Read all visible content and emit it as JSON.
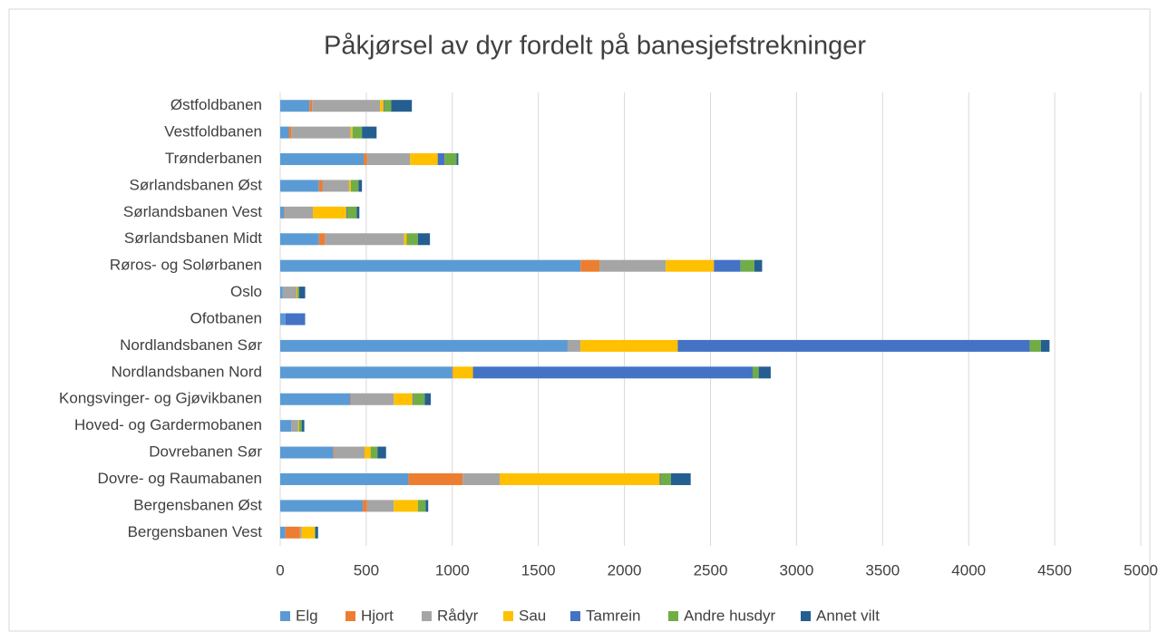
{
  "chart_data": {
    "type": "stacked-barh",
    "title": "Påkjørsel av dyr fordelt på banesjefstrekninger",
    "categories": [
      "Østfoldbanen",
      "Vestfoldbanen",
      "Trønderbanen",
      "Sørlandsbanen Øst",
      "Sørlandsbanen Vest",
      "Sørlandsbanen Midt",
      "Røros- og Solørbanen",
      "Oslo",
      "Ofotbanen",
      "Nordlandsbanen Sør",
      "Nordlandsbanen Nord",
      "Kongsvinger- og Gjøvikbanen",
      "Hoved- og Gardermobanen",
      "Dovrebanen Sør",
      "Dovre- og Raumabanen",
      "Bergensbanen Øst",
      "Bergensbanen Vest"
    ],
    "series": [
      {
        "name": "Elg",
        "color": "#5b9bd5",
        "values": [
          170,
          50,
          485,
          225,
          25,
          225,
          1745,
          15,
          30,
          1670,
          1000,
          410,
          65,
          310,
          745,
          480,
          30
        ]
      },
      {
        "name": "Hjort",
        "color": "#ed7d31",
        "values": [
          15,
          15,
          20,
          20,
          5,
          35,
          110,
          0,
          0,
          0,
          5,
          5,
          0,
          5,
          315,
          25,
          85
        ]
      },
      {
        "name": "Rådyr",
        "color": "#a5a5a5",
        "values": [
          395,
          345,
          250,
          155,
          160,
          460,
          385,
          80,
          0,
          75,
          0,
          245,
          40,
          175,
          215,
          155,
          10
        ]
      },
      {
        "name": "Sau",
        "color": "#ffc000",
        "values": [
          20,
          10,
          160,
          10,
          195,
          15,
          280,
          5,
          0,
          565,
          115,
          110,
          5,
          35,
          930,
          140,
          75
        ]
      },
      {
        "name": "Tamrein",
        "color": "#4472c4",
        "values": [
          5,
          0,
          40,
          0,
          5,
          0,
          155,
          0,
          115,
          2045,
          1625,
          5,
          0,
          0,
          5,
          0,
          0
        ]
      },
      {
        "name": "Andre husdyr",
        "color": "#70ad47",
        "values": [
          40,
          55,
          70,
          45,
          55,
          65,
          80,
          10,
          0,
          65,
          35,
          65,
          15,
          40,
          60,
          45,
          5
        ]
      },
      {
        "name": "Annet vilt",
        "color": "#255e91",
        "values": [
          120,
          85,
          10,
          20,
          15,
          70,
          45,
          35,
          0,
          50,
          70,
          35,
          15,
          50,
          115,
          15,
          15
        ]
      }
    ],
    "xlim": [
      0,
      5000
    ],
    "xticks": [
      0,
      500,
      1000,
      1500,
      2000,
      2500,
      3000,
      3500,
      4000,
      4500,
      5000
    ],
    "grid": true,
    "legend": "bottom"
  }
}
